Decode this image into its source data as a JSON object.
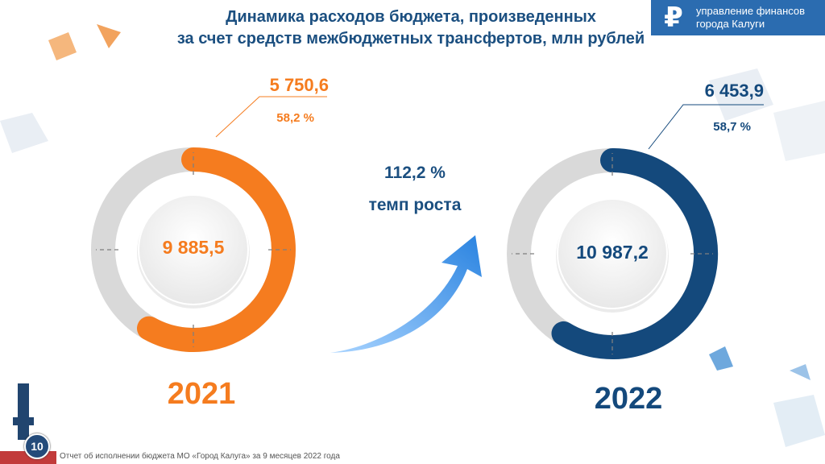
{
  "title_line1": "Динамика расходов бюджета, произведенных",
  "title_line2": "за счет средств межбюджетных трансфертов, млн рублей",
  "logo": {
    "icon": "ruble-icon",
    "line1": "управление финансов",
    "line2": "города Калуги"
  },
  "growth": {
    "value": "112,2 %",
    "label": "темп роста"
  },
  "footer": "Отчет об исполнении бюджета МО «Город Калуга» за 9 месяцев 2022 года",
  "page_number": "10",
  "colors": {
    "y2021": "#f57c1f",
    "y2022": "#14497c",
    "ring_bg": "#d9d9d9",
    "title": "#1b4f80",
    "arrow": "#2e8ae6"
  },
  "chart_data": [
    {
      "type": "pie",
      "title": "2021",
      "total": 9885.5,
      "total_label": "9 885,5",
      "values": [
        5750.6
      ],
      "value_labels": [
        "5 750,6"
      ],
      "share_labels": [
        "58,2 %"
      ],
      "share_pct": [
        58.2
      ]
    },
    {
      "type": "pie",
      "title": "2022",
      "total": 10987.2,
      "total_label": "10 987,2",
      "values": [
        6453.9
      ],
      "value_labels": [
        "6 453,9"
      ],
      "share_labels": [
        "58,7 %"
      ],
      "share_pct": [
        58.7
      ]
    }
  ]
}
